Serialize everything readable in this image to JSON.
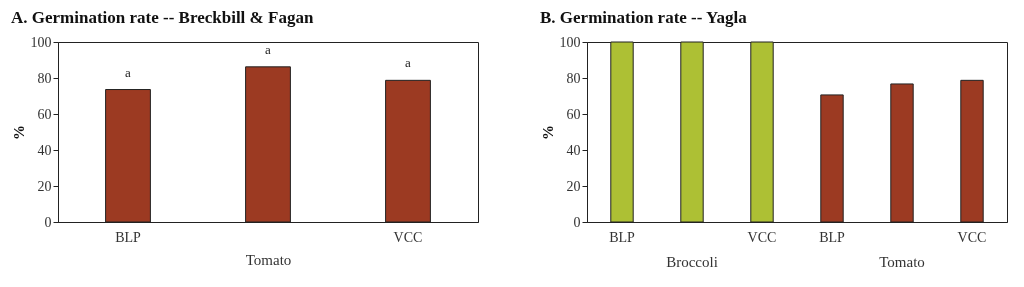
{
  "chart_data": [
    {
      "type": "bar",
      "title": "A. Germination rate -- Breckbill & Fagan",
      "xlabel": "Tomato",
      "ylabel": "%",
      "categories": [
        "BLP",
        null,
        "VCC"
      ],
      "values": [
        73.6,
        86.2,
        78.7
      ],
      "color": "#9c3a22",
      "value_labels": [
        "a",
        "a",
        "a"
      ],
      "ylim": [
        0,
        100
      ],
      "yticks": [
        0,
        20,
        40,
        60,
        80,
        100
      ],
      "grid": false
    },
    {
      "type": "bar",
      "title": "B. Germination rate -- Yagla",
      "ylabel": "%",
      "categories": [
        "BLP",
        null,
        "VCC",
        "BLP",
        null,
        "VCC"
      ],
      "values": [
        100,
        100,
        100,
        70.6,
        76.7,
        78.7
      ],
      "colors": [
        "#adc034",
        "#adc034",
        "#adc034",
        "#9c3a22",
        "#9c3a22",
        "#9c3a22"
      ],
      "annotations": [
        "Broccoli",
        "Tomato"
      ],
      "ylim": [
        0,
        100
      ],
      "yticks": [
        0,
        20,
        40,
        60,
        80,
        100
      ],
      "grid": false
    }
  ]
}
